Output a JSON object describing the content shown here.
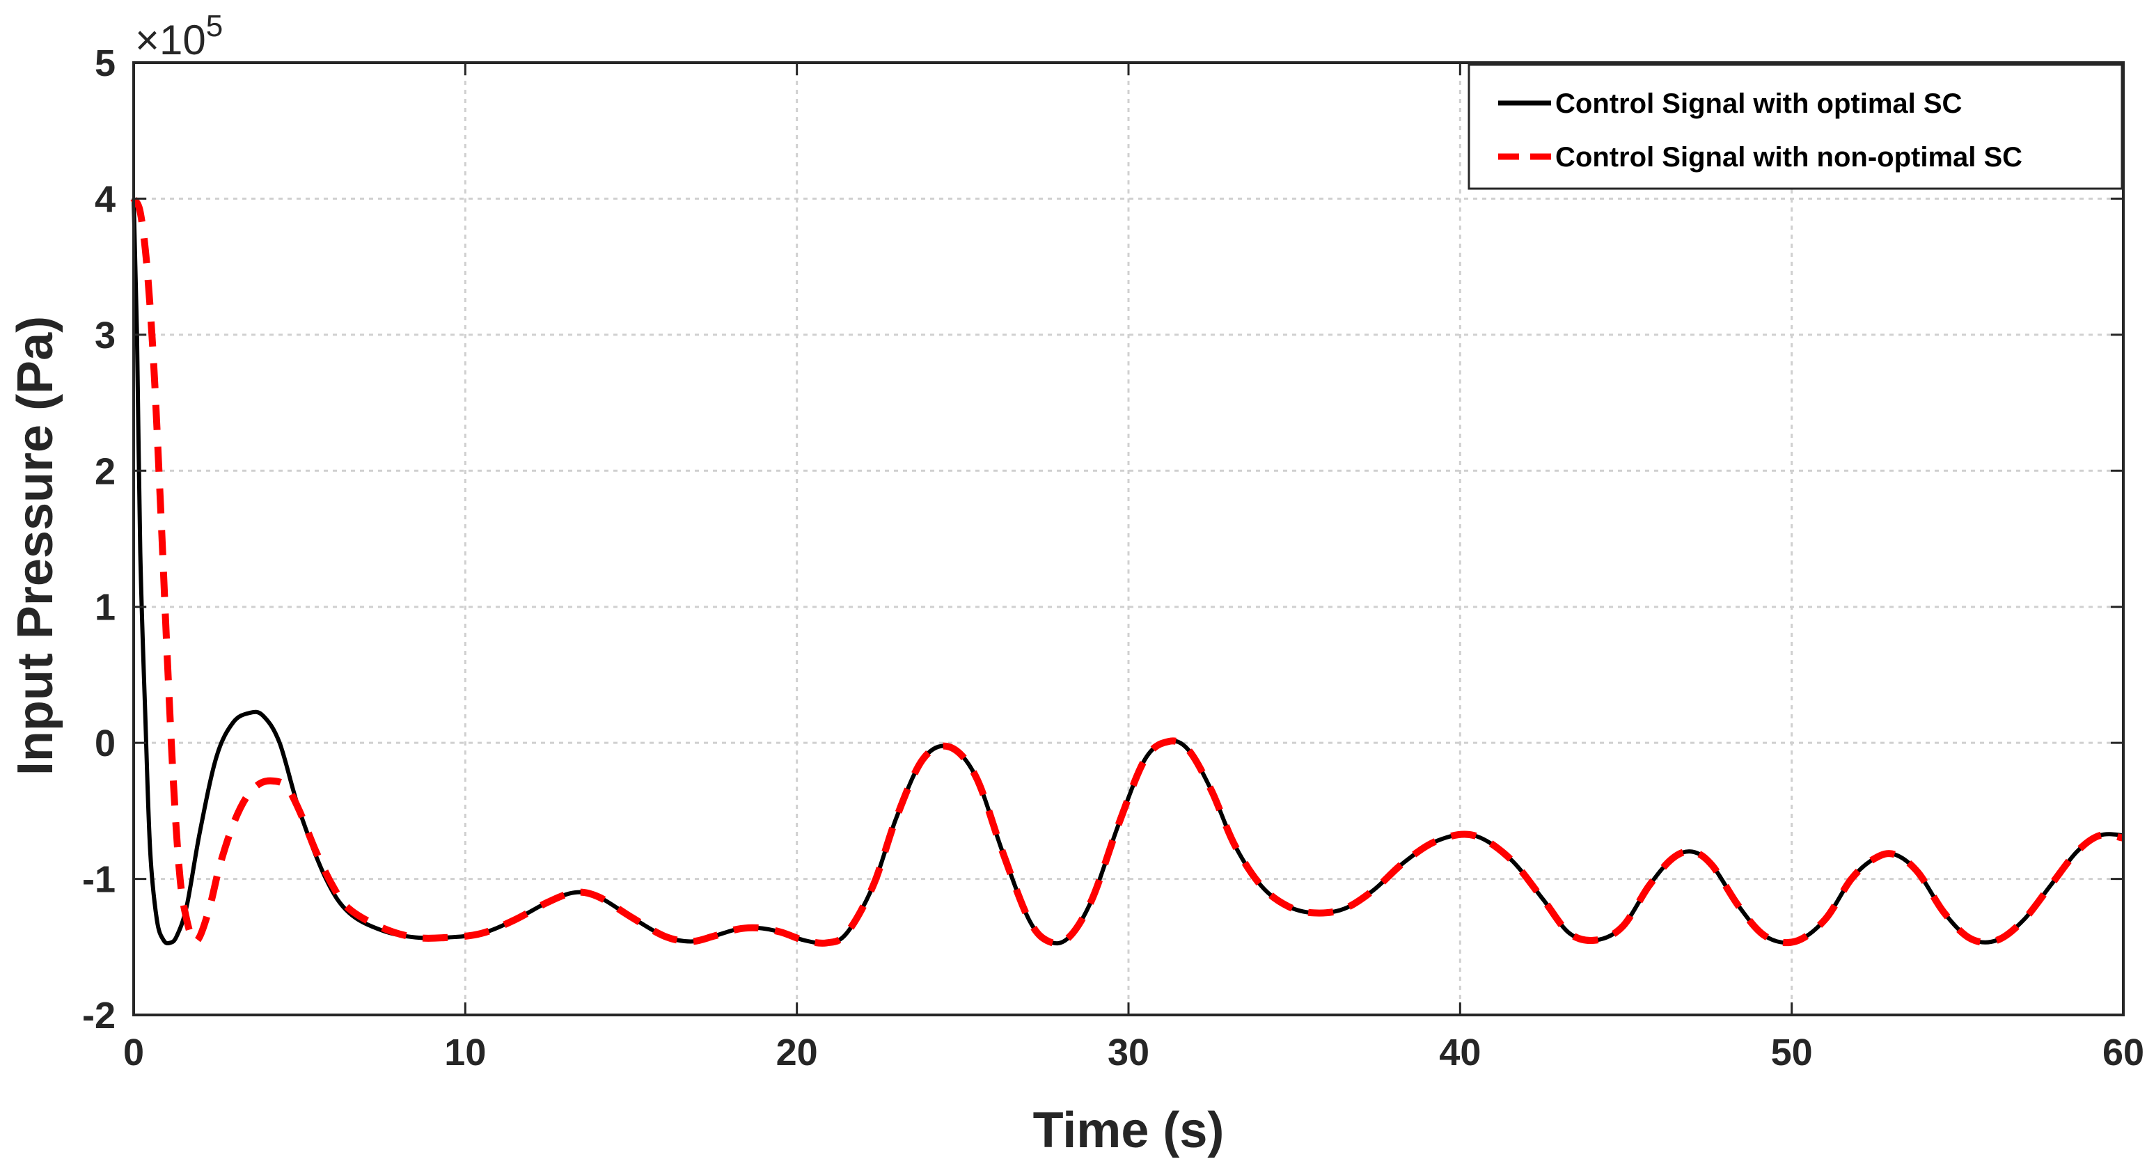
{
  "chart_data": {
    "type": "line",
    "title": "",
    "xlabel": "Time (s)",
    "ylabel": "Input  Pressure  (Pa)",
    "y_exponent_label": "×10",
    "y_exponent_power": "5",
    "xlim": [
      0,
      60
    ],
    "ylim": [
      -2,
      5
    ],
    "xticks": [
      0,
      10,
      20,
      30,
      40,
      50,
      60
    ],
    "yticks": [
      -2,
      -1,
      0,
      1,
      2,
      3,
      4,
      5
    ],
    "xtick_labels": [
      "0",
      "10",
      "20",
      "30",
      "40",
      "50",
      "60"
    ],
    "ytick_labels": [
      "-2",
      "-1",
      "0",
      "1",
      "2",
      "3",
      "4",
      "5"
    ],
    "grid": true,
    "legend_position": "top-right",
    "series": [
      {
        "name": "Control Signal with optimal SC",
        "color": "#000000",
        "style": "solid",
        "x": [
          0,
          0.1,
          0.2,
          0.35,
          0.5,
          0.7,
          0.9,
          1.1,
          1.3,
          1.6,
          2.0,
          2.5,
          3.0,
          3.5,
          3.9,
          4.4,
          5.0,
          5.8,
          6.5,
          7.5,
          8.5,
          9.5,
          10.5,
          11.5,
          12.5,
          13.3,
          14.0,
          15.0,
          16.0,
          16.8,
          17.5,
          18.2,
          18.8,
          19.5,
          20.2,
          20.9,
          21.5,
          22.3,
          23.0,
          23.8,
          24.6,
          25.4,
          26.2,
          27.0,
          27.6,
          28.2,
          28.9,
          29.7,
          30.5,
          31.2,
          31.8,
          32.5,
          33.2,
          34.0,
          34.8,
          35.6,
          36.5,
          37.4,
          38.3,
          39.3,
          40.4,
          41.5,
          42.5,
          43.3,
          44.1,
          44.9,
          45.7,
          46.4,
          47.0,
          47.6,
          48.4,
          49.2,
          50.1,
          51.0,
          51.8,
          52.5,
          53.1,
          53.8,
          54.6,
          55.4,
          56.2,
          57.0,
          57.8,
          58.6,
          59.3,
          60.0
        ],
        "y": [
          4.0,
          3.0,
          1.4,
          0.2,
          -0.8,
          -1.3,
          -1.45,
          -1.47,
          -1.42,
          -1.2,
          -0.65,
          -0.1,
          0.15,
          0.22,
          0.2,
          0.0,
          -0.5,
          -1.0,
          -1.25,
          -1.38,
          -1.43,
          -1.43,
          -1.4,
          -1.3,
          -1.17,
          -1.1,
          -1.13,
          -1.28,
          -1.42,
          -1.46,
          -1.42,
          -1.37,
          -1.36,
          -1.39,
          -1.45,
          -1.47,
          -1.4,
          -1.05,
          -0.55,
          -0.12,
          -0.03,
          -0.25,
          -0.8,
          -1.3,
          -1.46,
          -1.43,
          -1.15,
          -0.6,
          -0.12,
          0.01,
          -0.05,
          -0.35,
          -0.75,
          -1.05,
          -1.2,
          -1.25,
          -1.22,
          -1.08,
          -0.88,
          -0.72,
          -0.68,
          -0.85,
          -1.15,
          -1.4,
          -1.45,
          -1.35,
          -1.05,
          -0.85,
          -0.8,
          -0.9,
          -1.2,
          -1.42,
          -1.46,
          -1.3,
          -1.0,
          -0.85,
          -0.82,
          -0.95,
          -1.25,
          -1.44,
          -1.45,
          -1.3,
          -1.05,
          -0.8,
          -0.68,
          -0.68
        ]
      },
      {
        "name": "Control Signal with non-optimal SC",
        "color": "#ff0000",
        "style": "dashed",
        "x": [
          0,
          0.2,
          0.4,
          0.6,
          0.8,
          1.0,
          1.2,
          1.4,
          1.6,
          1.8,
          2.0,
          2.3,
          2.6,
          3.0,
          3.4,
          3.8,
          4.2,
          4.6,
          5.0,
          5.5,
          6.0,
          6.5,
          7.5,
          8.5,
          9.5,
          10.5,
          11.5,
          12.5,
          13.3,
          14.0,
          15.0,
          16.0,
          16.8,
          17.5,
          18.2,
          18.8,
          19.5,
          20.2,
          20.9,
          21.5,
          22.3,
          23.0,
          23.8,
          24.6,
          25.4,
          26.2,
          27.0,
          27.6,
          28.2,
          28.9,
          29.7,
          30.5,
          31.2,
          31.8,
          32.5,
          33.2,
          34.0,
          34.8,
          35.6,
          36.5,
          37.4,
          38.3,
          39.3,
          40.4,
          41.5,
          42.5,
          43.3,
          44.1,
          44.9,
          45.7,
          46.4,
          47.0,
          47.6,
          48.4,
          49.2,
          50.1,
          51.0,
          51.8,
          52.5,
          53.1,
          53.8,
          54.6,
          55.4,
          56.2,
          57.0,
          57.8,
          58.6,
          59.3,
          60.0
        ],
        "y": [
          4.0,
          3.9,
          3.5,
          2.8,
          1.8,
          0.7,
          -0.3,
          -1.0,
          -1.3,
          -1.45,
          -1.42,
          -1.2,
          -0.9,
          -0.6,
          -0.4,
          -0.3,
          -0.28,
          -0.32,
          -0.5,
          -0.8,
          -1.05,
          -1.22,
          -1.36,
          -1.43,
          -1.43,
          -1.4,
          -1.3,
          -1.17,
          -1.1,
          -1.13,
          -1.28,
          -1.42,
          -1.46,
          -1.42,
          -1.37,
          -1.36,
          -1.39,
          -1.45,
          -1.47,
          -1.4,
          -1.05,
          -0.55,
          -0.12,
          -0.03,
          -0.25,
          -0.8,
          -1.3,
          -1.46,
          -1.43,
          -1.15,
          -0.6,
          -0.12,
          0.01,
          -0.05,
          -0.35,
          -0.75,
          -1.05,
          -1.2,
          -1.25,
          -1.22,
          -1.08,
          -0.88,
          -0.72,
          -0.68,
          -0.85,
          -1.15,
          -1.4,
          -1.45,
          -1.35,
          -1.05,
          -0.85,
          -0.8,
          -0.9,
          -1.2,
          -1.42,
          -1.46,
          -1.3,
          -1.0,
          -0.85,
          -0.82,
          -0.95,
          -1.25,
          -1.44,
          -1.45,
          -1.3,
          -1.05,
          -0.8,
          -0.68,
          -0.7
        ]
      }
    ]
  }
}
